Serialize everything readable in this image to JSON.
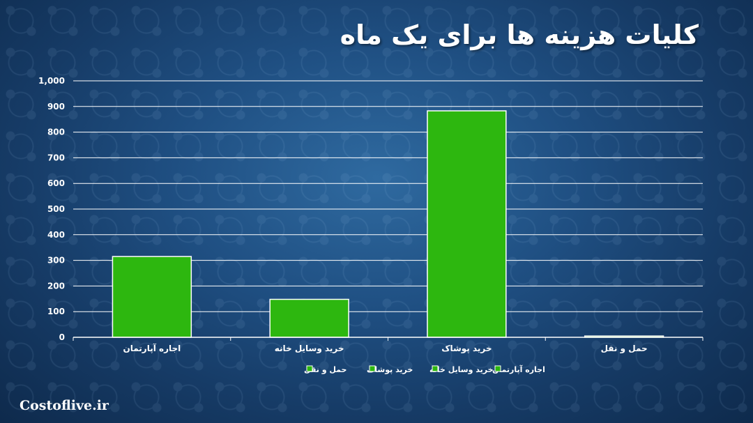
{
  "slide": {
    "title": "کلیات هزینه ها برای یک ماه",
    "brand": "Costoflive.ir"
  },
  "chart_data": {
    "type": "bar",
    "categories": [
      "اجاره آپارتمان",
      "خرید وسایل خانه",
      "خرید پوشاک",
      "حمل و نقل"
    ],
    "values": [
      315,
      148,
      883,
      5
    ],
    "ylim": [
      0,
      1000
    ],
    "yticks": [
      "0",
      "100",
      "200",
      "300",
      "400",
      "500",
      "600",
      "700",
      "800",
      "900",
      "1,000"
    ],
    "grid": true,
    "legend_position": "bottom",
    "legend": [
      "اجاره آپارتمان",
      "خرید وسایل خانه",
      "خرید پوشاک",
      "حمل و نقل"
    ],
    "bar_color": "#2db70f",
    "bar_edge_color": "#ffffff",
    "title": "",
    "xlabel": "",
    "ylabel": ""
  }
}
